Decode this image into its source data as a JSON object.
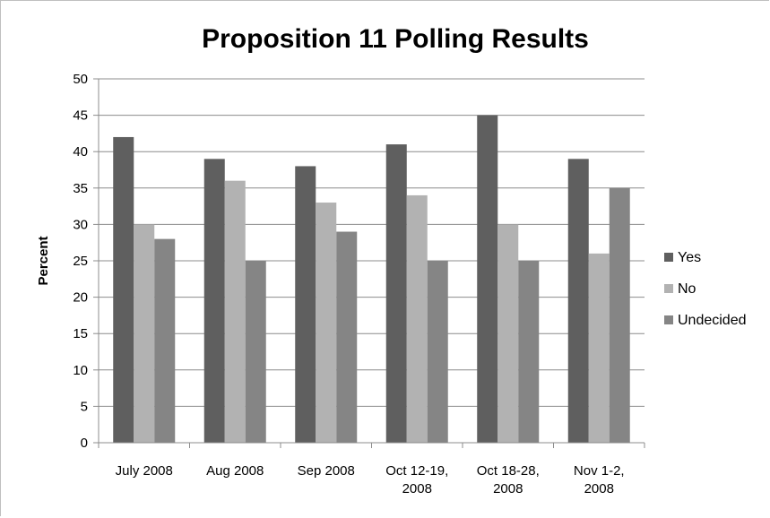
{
  "chart_data": {
    "type": "bar",
    "title": "Proposition 11 Polling Results",
    "ylabel": "Percent",
    "xlabel": "",
    "ylim": [
      0,
      50
    ],
    "yticks": [
      0,
      5,
      10,
      15,
      20,
      25,
      30,
      35,
      40,
      45,
      50
    ],
    "grid": true,
    "legend": "right",
    "categories": [
      [
        "July 2008"
      ],
      [
        "Aug 2008"
      ],
      [
        "Sep 2008"
      ],
      [
        "Oct 12-19,",
        "2008"
      ],
      [
        "Oct 18-28,",
        "2008"
      ],
      [
        "Nov 1-2,",
        "2008"
      ]
    ],
    "series": [
      {
        "name": "Yes",
        "color": "#5f5f5f",
        "values": [
          42,
          39,
          38,
          41,
          45,
          39
        ]
      },
      {
        "name": "No",
        "color": "#b2b2b2",
        "values": [
          30,
          36,
          33,
          34,
          30,
          26
        ]
      },
      {
        "name": "Undecided",
        "color": "#858585",
        "values": [
          28,
          25,
          29,
          25,
          25,
          35
        ]
      }
    ]
  }
}
